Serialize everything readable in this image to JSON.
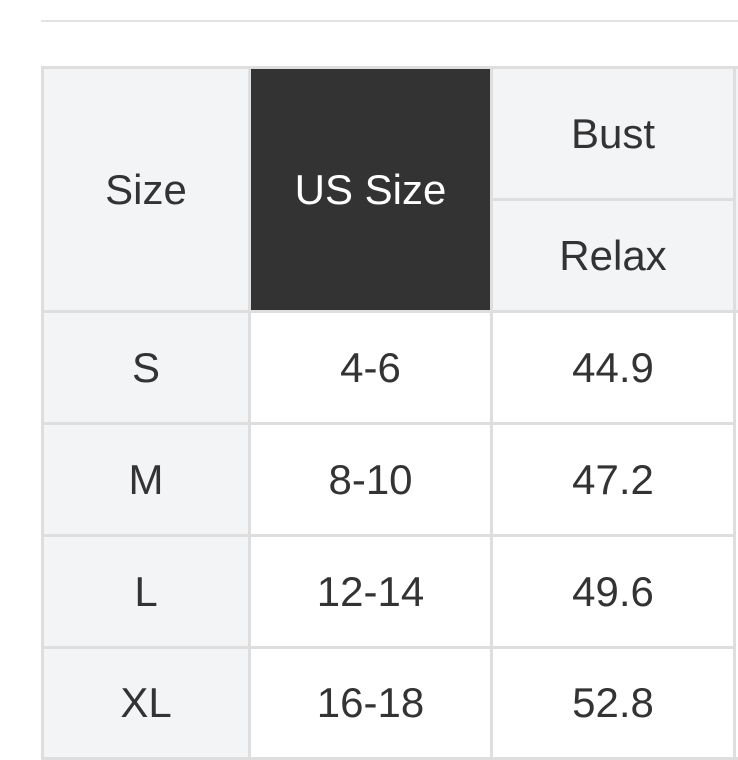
{
  "table": {
    "headers": {
      "size": "Size",
      "us_size": "US Size",
      "bust": "Bust",
      "bust_sub": "Relax"
    },
    "rows": [
      {
        "size": "S",
        "us_size": "4-6",
        "bust": "44.9"
      },
      {
        "size": "M",
        "us_size": "8-10",
        "bust": "47.2"
      },
      {
        "size": "L",
        "us_size": "12-14",
        "bust": "49.6"
      },
      {
        "size": "XL",
        "us_size": "16-18",
        "bust": "52.8"
      }
    ]
  },
  "colors": {
    "header_bg": "#f3f4f6",
    "highlight_bg": "#333333",
    "border": "#dedede"
  }
}
